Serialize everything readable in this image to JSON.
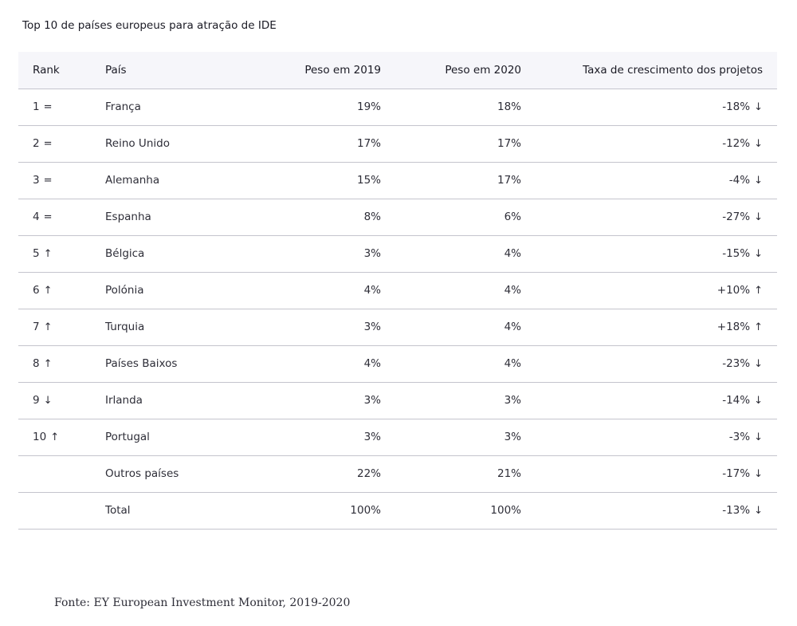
{
  "title": "Top 10 de países europeus para atração de IDE",
  "columns": [
    "Rank",
    "País",
    "Peso em 2019",
    "Peso em 2020",
    "Taxa de crescimento dos projetos"
  ],
  "rows": [
    {
      "rank": "1",
      "rank_trend": "=",
      "country": "França",
      "w2019": "19%",
      "w2020": "18%",
      "growth": "-18%",
      "growth_trend": "↓"
    },
    {
      "rank": "2",
      "rank_trend": "=",
      "country": "Reino Unido",
      "w2019": "17%",
      "w2020": "17%",
      "growth": "-12%",
      "growth_trend": "↓"
    },
    {
      "rank": "3",
      "rank_trend": "=",
      "country": "Alemanha",
      "w2019": "15%",
      "w2020": "17%",
      "growth": "-4%",
      "growth_trend": "↓"
    },
    {
      "rank": "4",
      "rank_trend": "=",
      "country": "Espanha",
      "w2019": "8%",
      "w2020": "6%",
      "growth": "-27%",
      "growth_trend": "↓"
    },
    {
      "rank": "5",
      "rank_trend": "↑",
      "country": "Bélgica",
      "w2019": "3%",
      "w2020": "4%",
      "growth": "-15%",
      "growth_trend": "↓"
    },
    {
      "rank": "6",
      "rank_trend": "↑",
      "country": "Polónia",
      "w2019": "4%",
      "w2020": "4%",
      "growth": "+10%",
      "growth_trend": "↑"
    },
    {
      "rank": "7",
      "rank_trend": "↑",
      "country": "Turquia",
      "w2019": "3%",
      "w2020": "4%",
      "growth": "+18%",
      "growth_trend": "↑"
    },
    {
      "rank": "8",
      "rank_trend": "↑",
      "country": "Países Baixos",
      "w2019": "4%",
      "w2020": "4%",
      "growth": "-23%",
      "growth_trend": "↓"
    },
    {
      "rank": "9",
      "rank_trend": "↓",
      "country": "Irlanda",
      "w2019": "3%",
      "w2020": "3%",
      "growth": "-14%",
      "growth_trend": "↓"
    },
    {
      "rank": "10",
      "rank_trend": "↑",
      "country": "Portugal",
      "w2019": "3%",
      "w2020": "3%",
      "growth": "-3%",
      "growth_trend": "↓"
    },
    {
      "rank": "",
      "rank_trend": "",
      "country": "Outros países",
      "w2019": "22%",
      "w2020": "21%",
      "growth": "-17%",
      "growth_trend": "↓"
    },
    {
      "rank": "",
      "rank_trend": "",
      "country": "Total",
      "w2019": "100%",
      "w2020": "100%",
      "growth": "-13%",
      "growth_trend": "↓"
    }
  ],
  "source": "Fonte: EY European Investment Monitor, 2019-2020",
  "colors": {
    "text": "#2e2e38",
    "header_bg": "#f6f6fa",
    "rule": "#c4c4cd"
  }
}
